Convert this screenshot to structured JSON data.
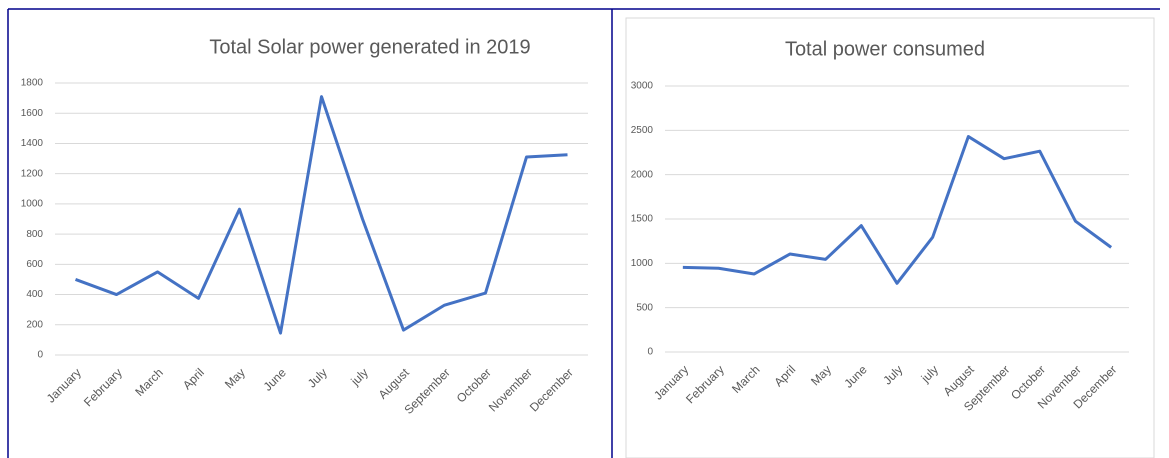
{
  "chart_data": [
    {
      "type": "line",
      "title": "Total Solar power generated in 2019",
      "categories": [
        "January",
        "February",
        "March",
        "April",
        "May",
        "June",
        "July",
        "july",
        "August",
        "September",
        "October",
        "November",
        "December"
      ],
      "values": [
        500,
        400,
        550,
        375,
        965,
        145,
        1710,
        900,
        165,
        330,
        410,
        1310,
        1325
      ],
      "color": "#4472c4",
      "ylim": [
        0,
        1800
      ],
      "yticks": [
        0,
        200,
        400,
        600,
        800,
        1000,
        1200,
        1400,
        1600,
        1800
      ],
      "grid": true
    },
    {
      "type": "line",
      "title": "Total power consumed",
      "categories": [
        "January",
        "February",
        "March",
        "April",
        "May",
        "June",
        "July",
        "july",
        "August",
        "September",
        "October",
        "November",
        "December"
      ],
      "values": [
        955,
        945,
        880,
        1105,
        1045,
        1425,
        775,
        1295,
        2430,
        2180,
        2265,
        1475,
        1180
      ],
      "color": "#4472c4",
      "ylim": [
        0,
        3000
      ],
      "yticks": [
        0,
        500,
        1000,
        1500,
        2000,
        2500,
        3000
      ],
      "grid": true
    }
  ]
}
